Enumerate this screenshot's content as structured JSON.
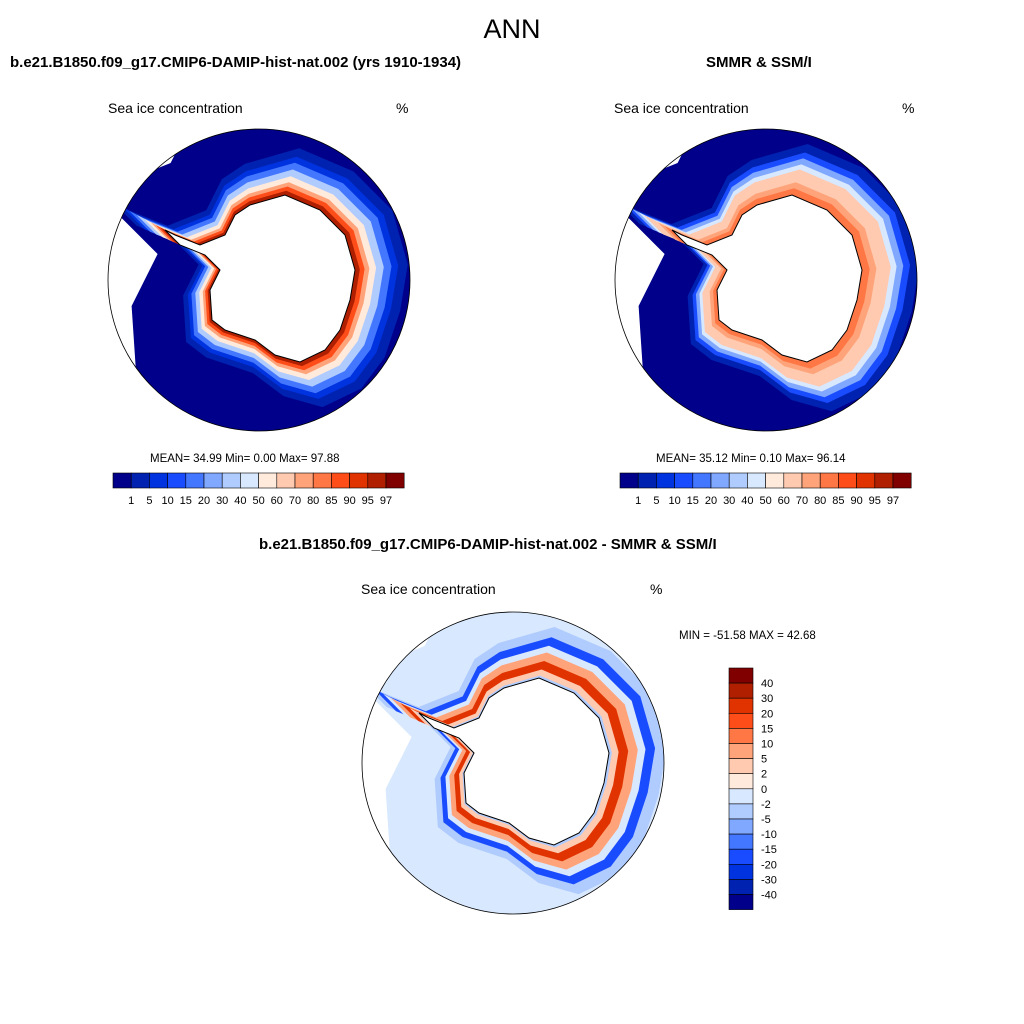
{
  "title": "ANN",
  "palette": [
    "#00008a",
    "#0022b0",
    "#0033e0",
    "#1a4cff",
    "#4477ff",
    "#80a8ff",
    "#b0ccff",
    "#d8e8ff",
    "#ffeadb",
    "#ffcab0",
    "#ffa47a",
    "#ff7744",
    "#ff4d1a",
    "#e03300",
    "#b02000",
    "#800000"
  ],
  "panels": [
    {
      "title": "b.e21.B1850.f09_g17.CMIP6-DAMIP-hist-nat.002 (yrs 1910-1934)",
      "variable": "Sea ice concentration",
      "units": "%",
      "stats": "MEAN=  34.99  Min=   0.00  Max=  97.88"
    },
    {
      "title": "SMMR & SSM/I",
      "variable": "Sea ice concentration",
      "units": "%",
      "stats": "MEAN=  35.12  Min=   0.10  Max=  96.14"
    },
    {
      "title": "b.e21.B1850.f09_g17.CMIP6-DAMIP-hist-nat.002 - SMMR & SSM/I",
      "variable": "Sea ice concentration",
      "units": "%",
      "stats": "MIN = -51.58 MAX =  42.68"
    }
  ],
  "chart_data": [
    {
      "type": "heatmap",
      "title": "b.e21.B1850.f09_g17.CMIP6-DAMIP-hist-nat.002 (yrs 1910-1934)",
      "projection": "south polar stereographic",
      "variable": "Sea ice concentration",
      "units": "%",
      "mean": 34.99,
      "min": 0.0,
      "max": 97.88,
      "colorbar_levels": [
        "1",
        "5",
        "10",
        "15",
        "20",
        "30",
        "40",
        "50",
        "60",
        "70",
        "80",
        "85",
        "90",
        "95",
        "97"
      ]
    },
    {
      "type": "heatmap",
      "title": "SMMR & SSM/I",
      "projection": "south polar stereographic",
      "variable": "Sea ice concentration",
      "units": "%",
      "mean": 35.12,
      "min": 0.1,
      "max": 96.14,
      "colorbar_levels": [
        "1",
        "5",
        "10",
        "15",
        "20",
        "30",
        "40",
        "50",
        "60",
        "70",
        "80",
        "85",
        "90",
        "95",
        "97"
      ]
    },
    {
      "type": "heatmap",
      "title": "b.e21.B1850.f09_g17.CMIP6-DAMIP-hist-nat.002 - SMMR & SSM/I",
      "projection": "south polar stereographic",
      "variable": "Sea ice concentration",
      "units": "%",
      "min": -51.58,
      "max": 42.68,
      "colorbar_levels": [
        "40",
        "30",
        "20",
        "15",
        "10",
        "5",
        "2",
        "0",
        "-2",
        "-5",
        "-10",
        "-15",
        "-20",
        "-30",
        "-40"
      ]
    }
  ]
}
